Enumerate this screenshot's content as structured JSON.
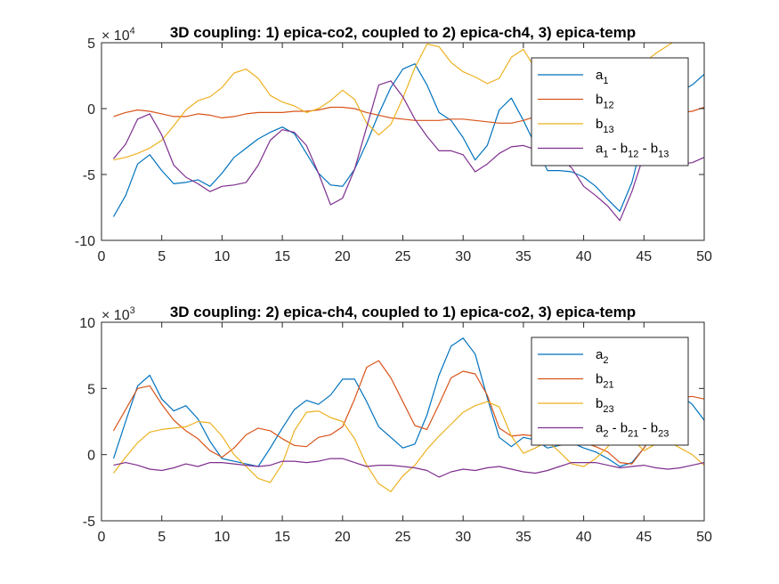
{
  "chart_data": [
    {
      "type": "line",
      "title": "3D coupling: 1) epica-co2, coupled to 2) epica-ch4, 3) epica-temp",
      "xlim": [
        0,
        50
      ],
      "ylim": [
        -10,
        5
      ],
      "y_exponent_base": "× 10",
      "y_exponent": "4",
      "xticks": [
        0,
        5,
        10,
        15,
        20,
        25,
        30,
        35,
        40,
        45,
        50
      ],
      "yticks": [
        -10,
        -5,
        0,
        5
      ],
      "legend_location": "top-right",
      "x": [
        1,
        2,
        3,
        4,
        5,
        6,
        7,
        8,
        9,
        10,
        11,
        12,
        13,
        14,
        15,
        16,
        17,
        18,
        19,
        20,
        21,
        22,
        23,
        24,
        25,
        26,
        27,
        28,
        29,
        30,
        31,
        32,
        33,
        34,
        35,
        36,
        37,
        38,
        39,
        40,
        41,
        42,
        43,
        44,
        45,
        46,
        47,
        48,
        49,
        50
      ],
      "series": [
        {
          "name": "a_1 (a₁)",
          "legend": {
            "base": "a",
            "sub": "1",
            "parts": []
          },
          "color": "#0072BD",
          "values": [
            -8.2,
            -6.6,
            -4.2,
            -3.5,
            -4.7,
            -5.7,
            -5.6,
            -5.4,
            -5.9,
            -4.9,
            -3.7,
            -3.0,
            -2.3,
            -1.8,
            -1.4,
            -1.9,
            -3.4,
            -4.9,
            -5.8,
            -5.9,
            -4.6,
            -2.6,
            -0.4,
            1.6,
            3.0,
            3.4,
            1.8,
            -0.3,
            -0.9,
            -2.2,
            -3.9,
            -2.8,
            -0.1,
            0.8,
            -0.9,
            -2.8,
            -4.7,
            -4.7,
            -4.8,
            -5.2,
            -5.9,
            -6.9,
            -7.8,
            -5.6,
            -2.0,
            0.0,
            0.9,
            1.3,
            1.8,
            2.6
          ]
        },
        {
          "name": "b_12 (b₁₂)",
          "legend": {
            "base": "b",
            "sub": "12",
            "parts": []
          },
          "color": "#D95319",
          "values": [
            -0.6,
            -0.3,
            -0.1,
            -0.2,
            -0.4,
            -0.6,
            -0.6,
            -0.4,
            -0.5,
            -0.7,
            -0.6,
            -0.4,
            -0.3,
            -0.3,
            -0.3,
            -0.2,
            -0.2,
            -0.1,
            0.1,
            0.1,
            0.0,
            -0.3,
            -0.5,
            -0.7,
            -0.8,
            -0.9,
            -0.9,
            -0.9,
            -0.8,
            -0.8,
            -0.9,
            -1.0,
            -1.1,
            -1.1,
            -0.9,
            -0.6,
            -0.4,
            -0.3,
            -0.3,
            -0.3,
            -0.4,
            -0.5,
            -0.5,
            -0.5,
            -0.4,
            -0.3,
            -0.3,
            -0.3,
            -0.2,
            0.1
          ]
        },
        {
          "name": "b_13 (b₁₃)",
          "legend": {
            "base": "b",
            "sub": "13",
            "parts": []
          },
          "color": "#EDB120",
          "values": [
            -3.9,
            -3.7,
            -3.4,
            -3.0,
            -2.4,
            -1.3,
            -0.1,
            0.6,
            0.9,
            1.6,
            2.7,
            3.0,
            2.3,
            1.0,
            0.5,
            0.2,
            -0.3,
            0.0,
            0.6,
            1.4,
            0.7,
            -1.1,
            -2.0,
            -1.2,
            0.8,
            3.1,
            4.9,
            4.7,
            3.5,
            2.8,
            2.4,
            1.9,
            2.3,
            3.9,
            4.5,
            3.0,
            0.8,
            -0.4,
            -0.8,
            -0.3,
            0.4,
            1.1,
            1.7,
            2.6,
            3.5,
            4.2,
            4.8,
            5.4,
            5.8,
            6.1
          ]
        },
        {
          "name": "a_1 - b_12 - b_13 (a₁ - b₁₂ - b₁₃)",
          "legend": {
            "base": "a",
            "sub": "1",
            "parts": [
              {
                "base": " - b",
                "sub": "12"
              },
              {
                "base": " - b",
                "sub": "13"
              }
            ]
          },
          "color": "#7E2F8E",
          "values": [
            -3.8,
            -2.7,
            -0.8,
            -0.4,
            -2.0,
            -4.3,
            -5.2,
            -5.7,
            -6.3,
            -5.9,
            -5.8,
            -5.6,
            -4.3,
            -2.4,
            -1.6,
            -1.8,
            -2.8,
            -4.9,
            -7.3,
            -6.8,
            -4.6,
            -1.4,
            1.8,
            2.1,
            0.9,
            -0.8,
            -2.1,
            -3.2,
            -3.2,
            -3.5,
            -4.8,
            -4.2,
            -3.4,
            -2.9,
            -2.8,
            -3.1,
            -3.4,
            -3.7,
            -4.5,
            -5.9,
            -6.6,
            -7.4,
            -8.5,
            -6.3,
            -3.5,
            -3.4,
            -3.9,
            -4.2,
            -4.1,
            -3.7
          ]
        }
      ]
    },
    {
      "type": "line",
      "title": "3D coupling: 2) epica-ch4, coupled to 1) epica-co2, 3) epica-temp",
      "xlim": [
        0,
        50
      ],
      "ylim": [
        -5,
        10
      ],
      "y_exponent_base": "× 10",
      "y_exponent": "3",
      "xticks": [
        0,
        5,
        10,
        15,
        20,
        25,
        30,
        35,
        40,
        45,
        50
      ],
      "yticks": [
        -5,
        0,
        5,
        10
      ],
      "legend_location": "top-right",
      "x": [
        1,
        2,
        3,
        4,
        5,
        6,
        7,
        8,
        9,
        10,
        11,
        12,
        13,
        14,
        15,
        16,
        17,
        18,
        19,
        20,
        21,
        22,
        23,
        24,
        25,
        26,
        27,
        28,
        29,
        30,
        31,
        32,
        33,
        34,
        35,
        36,
        37,
        38,
        39,
        40,
        41,
        42,
        43,
        44,
        45,
        46,
        47,
        48,
        49,
        50
      ],
      "series": [
        {
          "name": "a_2 (a₂)",
          "legend": {
            "base": "a",
            "sub": "2",
            "parts": []
          },
          "color": "#0072BD",
          "values": [
            -0.3,
            2.5,
            5.2,
            6.0,
            4.2,
            3.3,
            3.7,
            2.7,
            1.0,
            -0.3,
            -0.5,
            -0.7,
            -0.9,
            0.5,
            2.0,
            3.4,
            4.1,
            3.8,
            4.5,
            5.7,
            5.7,
            4.0,
            2.1,
            1.3,
            0.5,
            0.8,
            3.0,
            6.0,
            8.2,
            8.8,
            7.6,
            4.3,
            1.3,
            0.6,
            1.3,
            1.1,
            0.5,
            0.7,
            0.9,
            0.5,
            0.2,
            -0.3,
            -0.9,
            -0.6,
            0.5,
            2.0,
            3.5,
            4.5,
            3.8,
            2.6
          ]
        },
        {
          "name": "b_21 (b₂₁)",
          "legend": {
            "base": "b",
            "sub": "21",
            "parts": []
          },
          "color": "#D95319",
          "values": [
            1.8,
            3.4,
            5.0,
            5.2,
            3.8,
            2.6,
            1.8,
            1.2,
            0.3,
            -0.2,
            0.5,
            1.5,
            2.0,
            1.8,
            1.2,
            0.7,
            0.6,
            1.3,
            1.5,
            2.1,
            4.2,
            6.6,
            7.1,
            5.8,
            4.0,
            2.2,
            1.9,
            3.8,
            5.8,
            6.3,
            6.1,
            4.5,
            2.0,
            1.4,
            1.5,
            1.4,
            0.8,
            0.7,
            1.0,
            0.9,
            0.6,
            0.2,
            -0.6,
            -0.7,
            0.5,
            1.8,
            3.4,
            4.3,
            4.4,
            4.2
          ]
        },
        {
          "name": "b_23 (b₂₃)",
          "legend": {
            "base": "b",
            "sub": "23",
            "parts": []
          },
          "color": "#EDB120",
          "values": [
            -1.4,
            -0.2,
            0.9,
            1.7,
            1.9,
            2.0,
            2.1,
            2.5,
            2.4,
            1.4,
            0.0,
            -0.9,
            -1.8,
            -2.1,
            -0.7,
            1.8,
            3.2,
            3.3,
            2.8,
            2.5,
            1.2,
            -0.8,
            -2.2,
            -2.8,
            -1.6,
            -0.8,
            0.4,
            1.4,
            2.3,
            3.2,
            3.7,
            4.0,
            3.6,
            1.4,
            0.1,
            0.5,
            1.0,
            0.2,
            -0.7,
            -0.9,
            -0.3,
            0.6,
            1.7,
            1.2,
            0.3,
            0.8,
            1.0,
            0.5,
            0.0,
            -0.8
          ]
        },
        {
          "name": "a_2 - b_21 - b_23 (a₂ - b₂₁ - b₂₃)",
          "legend": {
            "base": "a",
            "sub": "2",
            "parts": [
              {
                "base": " - b",
                "sub": "21"
              },
              {
                "base": " - b",
                "sub": "23"
              }
            ]
          },
          "color": "#7E2F8E",
          "values": [
            -0.8,
            -0.6,
            -0.8,
            -1.1,
            -1.2,
            -1.0,
            -0.7,
            -0.9,
            -0.6,
            -0.6,
            -0.7,
            -0.8,
            -0.9,
            -0.8,
            -0.5,
            -0.5,
            -0.6,
            -0.5,
            -0.3,
            -0.3,
            -0.6,
            -0.9,
            -0.8,
            -0.8,
            -0.9,
            -1.0,
            -1.2,
            -1.7,
            -1.3,
            -1.1,
            -1.2,
            -1.0,
            -0.9,
            -1.1,
            -1.3,
            -1.4,
            -1.2,
            -0.9,
            -0.6,
            -0.6,
            -0.6,
            -0.8,
            -1.0,
            -0.9,
            -0.8,
            -1.0,
            -1.1,
            -1.0,
            -0.8,
            -0.6
          ]
        }
      ]
    }
  ]
}
